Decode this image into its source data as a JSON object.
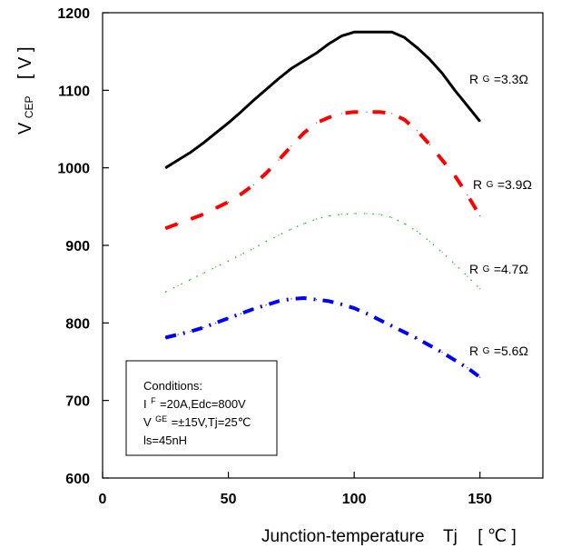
{
  "chart_data": {
    "type": "line",
    "xlabel": {
      "name": "Junction-temperature",
      "symbol": "Tj",
      "unit": "[ ℃ ]"
    },
    "ylabel": {
      "main": "V",
      "sub": "CEP",
      "unit": "[ V ]"
    },
    "xlim": [
      0,
      175
    ],
    "ylim": [
      600,
      1200
    ],
    "xticks": [
      0,
      50,
      100,
      150
    ],
    "yticks": [
      600,
      700,
      800,
      900,
      1000,
      1100,
      1200
    ],
    "grid": false,
    "series": [
      {
        "name_main": "R",
        "name_sub": "G",
        "name_value": "=3.3Ω",
        "color": "#000000",
        "style": "solid",
        "x": [
          25,
          30,
          35,
          40,
          45,
          50,
          55,
          60,
          65,
          70,
          75,
          80,
          85,
          90,
          95,
          100,
          105,
          110,
          115,
          120,
          125,
          130,
          135,
          140,
          145,
          150
        ],
        "y": [
          1000,
          1010,
          1020,
          1032,
          1045,
          1058,
          1072,
          1087,
          1101,
          1115,
          1128,
          1138,
          1148,
          1160,
          1170,
          1175,
          1175,
          1175,
          1175,
          1168,
          1155,
          1140,
          1122,
          1100,
          1080,
          1060
        ]
      },
      {
        "name_main": "R",
        "name_sub": "G",
        "name_value": "=3.9Ω",
        "color": "#ff0000",
        "style": "dashed",
        "x": [
          25,
          30,
          35,
          40,
          45,
          50,
          55,
          60,
          65,
          70,
          75,
          80,
          85,
          90,
          95,
          100,
          105,
          110,
          115,
          120,
          125,
          130,
          135,
          140,
          145,
          150
        ],
        "y": [
          922,
          928,
          934,
          940,
          948,
          956,
          966,
          978,
          993,
          1010,
          1028,
          1045,
          1058,
          1065,
          1070,
          1072,
          1072,
          1072,
          1070,
          1062,
          1048,
          1030,
          1010,
          990,
          965,
          938
        ]
      },
      {
        "name_main": "R",
        "name_sub": "G",
        "name_value": "=4.7Ω",
        "color": "#00cc00",
        "style": "dotted",
        "x": [
          25,
          30,
          35,
          40,
          45,
          50,
          55,
          60,
          65,
          70,
          75,
          80,
          85,
          90,
          95,
          100,
          105,
          110,
          115,
          120,
          125,
          130,
          135,
          140,
          145,
          150
        ],
        "y": [
          840,
          848,
          856,
          864,
          872,
          880,
          888,
          896,
          905,
          913,
          921,
          928,
          934,
          938,
          940,
          941,
          941,
          940,
          936,
          928,
          918,
          905,
          891,
          876,
          860,
          844
        ]
      },
      {
        "name_main": "R",
        "name_sub": "G",
        "name_value": "=5.6Ω",
        "color": "#0000ff",
        "style": "dashdot",
        "x": [
          25,
          30,
          35,
          40,
          45,
          50,
          55,
          60,
          65,
          70,
          75,
          80,
          85,
          90,
          95,
          100,
          105,
          110,
          115,
          120,
          125,
          130,
          135,
          140,
          145,
          150
        ],
        "y": [
          781,
          785,
          789,
          794,
          800,
          806,
          812,
          818,
          823,
          828,
          831,
          832,
          830,
          828,
          824,
          819,
          812,
          804,
          796,
          788,
          780,
          771,
          762,
          752,
          742,
          730
        ]
      }
    ],
    "conditions": {
      "title": "Conditions:",
      "line1_pre": "I",
      "line1_sup": "F",
      "line1_post": "=20A,Edc=800V",
      "line2_pre": "V",
      "line2_sup": "GE",
      "line2_post": "=±15V,Tj=25℃",
      "line3": "ls=45nH"
    }
  }
}
